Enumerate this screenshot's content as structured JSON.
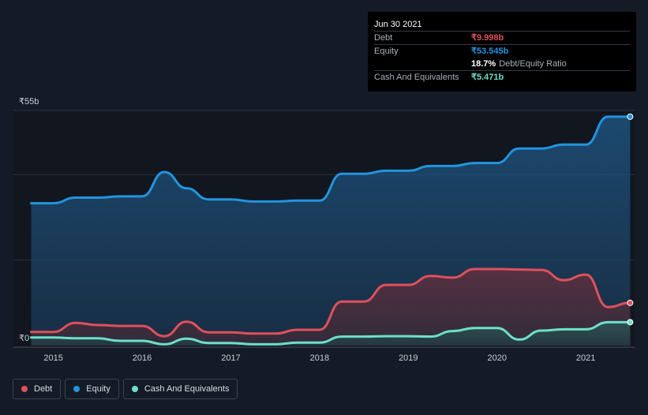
{
  "tooltip": {
    "date": "Jun 30 2021",
    "debt_label": "Debt",
    "debt_value": "₹9.998b",
    "equity_label": "Equity",
    "equity_value": "₹53.545b",
    "ratio_value": "18.7%",
    "ratio_label": "Debt/Equity Ratio",
    "cash_label": "Cash And Equivalents",
    "cash_value": "₹5.471b"
  },
  "legend": {
    "debt": "Debt",
    "equity": "Equity",
    "cash": "Cash And Equivalents"
  },
  "colors": {
    "debt": "#e0505c",
    "equity": "#2394df",
    "cash": "#6ce0ca",
    "background": "#151b26"
  },
  "chart_data": {
    "type": "area",
    "title": "",
    "xlabel": "",
    "ylabel": "",
    "ylim": [
      0,
      55
    ],
    "y_ticks": [
      {
        "value": 55,
        "label": "₹55b"
      },
      {
        "value": 0,
        "label": "₹0"
      }
    ],
    "x_ticks": [
      {
        "value": 2015,
        "label": "2015"
      },
      {
        "value": 2016,
        "label": "2016"
      },
      {
        "value": 2017,
        "label": "2017"
      },
      {
        "value": 2018,
        "label": "2018"
      },
      {
        "value": 2019,
        "label": "2019"
      },
      {
        "value": 2020,
        "label": "2020"
      },
      {
        "value": 2021,
        "label": "2021"
      }
    ],
    "xlim": [
      2014.55,
      2021.55
    ],
    "legend_position": "bottom-left",
    "grid": true,
    "series": [
      {
        "name": "Equity",
        "color_key": "equity",
        "points": [
          [
            2014.75,
            33.3
          ],
          [
            2015.0,
            33.3
          ],
          [
            2015.25,
            34.6
          ],
          [
            2015.5,
            34.6
          ],
          [
            2015.75,
            34.9
          ],
          [
            2016.0,
            34.9
          ],
          [
            2016.25,
            40.6
          ],
          [
            2016.5,
            36.8
          ],
          [
            2016.75,
            34.2
          ],
          [
            2017.0,
            34.2
          ],
          [
            2017.25,
            33.7
          ],
          [
            2017.5,
            33.7
          ],
          [
            2017.75,
            33.9
          ],
          [
            2018.0,
            33.9
          ],
          [
            2018.25,
            40.2
          ],
          [
            2018.5,
            40.2
          ],
          [
            2018.75,
            40.9
          ],
          [
            2019.0,
            40.9
          ],
          [
            2019.25,
            42.0
          ],
          [
            2019.5,
            42.0
          ],
          [
            2019.75,
            42.7
          ],
          [
            2020.0,
            42.7
          ],
          [
            2020.25,
            46.1
          ],
          [
            2020.5,
            46.1
          ],
          [
            2020.75,
            47.0
          ],
          [
            2021.0,
            47.0
          ],
          [
            2021.25,
            53.545
          ],
          [
            2021.5,
            53.545
          ]
        ]
      },
      {
        "name": "Debt",
        "color_key": "debt",
        "points": [
          [
            2014.75,
            3.2
          ],
          [
            2015.0,
            3.2
          ],
          [
            2015.25,
            5.3
          ],
          [
            2015.5,
            4.8
          ],
          [
            2015.75,
            4.6
          ],
          [
            2016.0,
            4.6
          ],
          [
            2016.25,
            2.2
          ],
          [
            2016.5,
            5.6
          ],
          [
            2016.75,
            3.1
          ],
          [
            2017.0,
            3.1
          ],
          [
            2017.25,
            2.8
          ],
          [
            2017.5,
            2.8
          ],
          [
            2017.75,
            3.7
          ],
          [
            2018.0,
            3.7
          ],
          [
            2018.25,
            10.3
          ],
          [
            2018.5,
            10.3
          ],
          [
            2018.75,
            14.2
          ],
          [
            2019.0,
            14.2
          ],
          [
            2019.25,
            16.3
          ],
          [
            2019.5,
            15.9
          ],
          [
            2019.75,
            17.9
          ],
          [
            2020.0,
            17.9
          ],
          [
            2020.25,
            17.8
          ],
          [
            2020.5,
            17.7
          ],
          [
            2020.75,
            15.3
          ],
          [
            2021.0,
            16.6
          ],
          [
            2021.25,
            9.0
          ],
          [
            2021.5,
            9.998
          ]
        ]
      },
      {
        "name": "Cash And Equivalents",
        "color_key": "cash",
        "points": [
          [
            2014.75,
            1.9
          ],
          [
            2015.0,
            1.9
          ],
          [
            2015.25,
            1.7
          ],
          [
            2015.5,
            1.7
          ],
          [
            2015.75,
            1.1
          ],
          [
            2016.0,
            1.1
          ],
          [
            2016.25,
            0.3
          ],
          [
            2016.5,
            1.6
          ],
          [
            2016.75,
            0.6
          ],
          [
            2017.0,
            0.6
          ],
          [
            2017.25,
            0.3
          ],
          [
            2017.5,
            0.3
          ],
          [
            2017.75,
            0.7
          ],
          [
            2018.0,
            0.7
          ],
          [
            2018.25,
            2.1
          ],
          [
            2018.5,
            2.1
          ],
          [
            2018.75,
            2.2
          ],
          [
            2019.0,
            2.2
          ],
          [
            2019.25,
            2.1
          ],
          [
            2019.5,
            3.4
          ],
          [
            2019.75,
            4.1
          ],
          [
            2020.0,
            4.1
          ],
          [
            2020.25,
            1.4
          ],
          [
            2020.5,
            3.5
          ],
          [
            2020.75,
            3.8
          ],
          [
            2021.0,
            3.8
          ],
          [
            2021.25,
            5.471
          ],
          [
            2021.5,
            5.471
          ]
        ]
      }
    ]
  }
}
